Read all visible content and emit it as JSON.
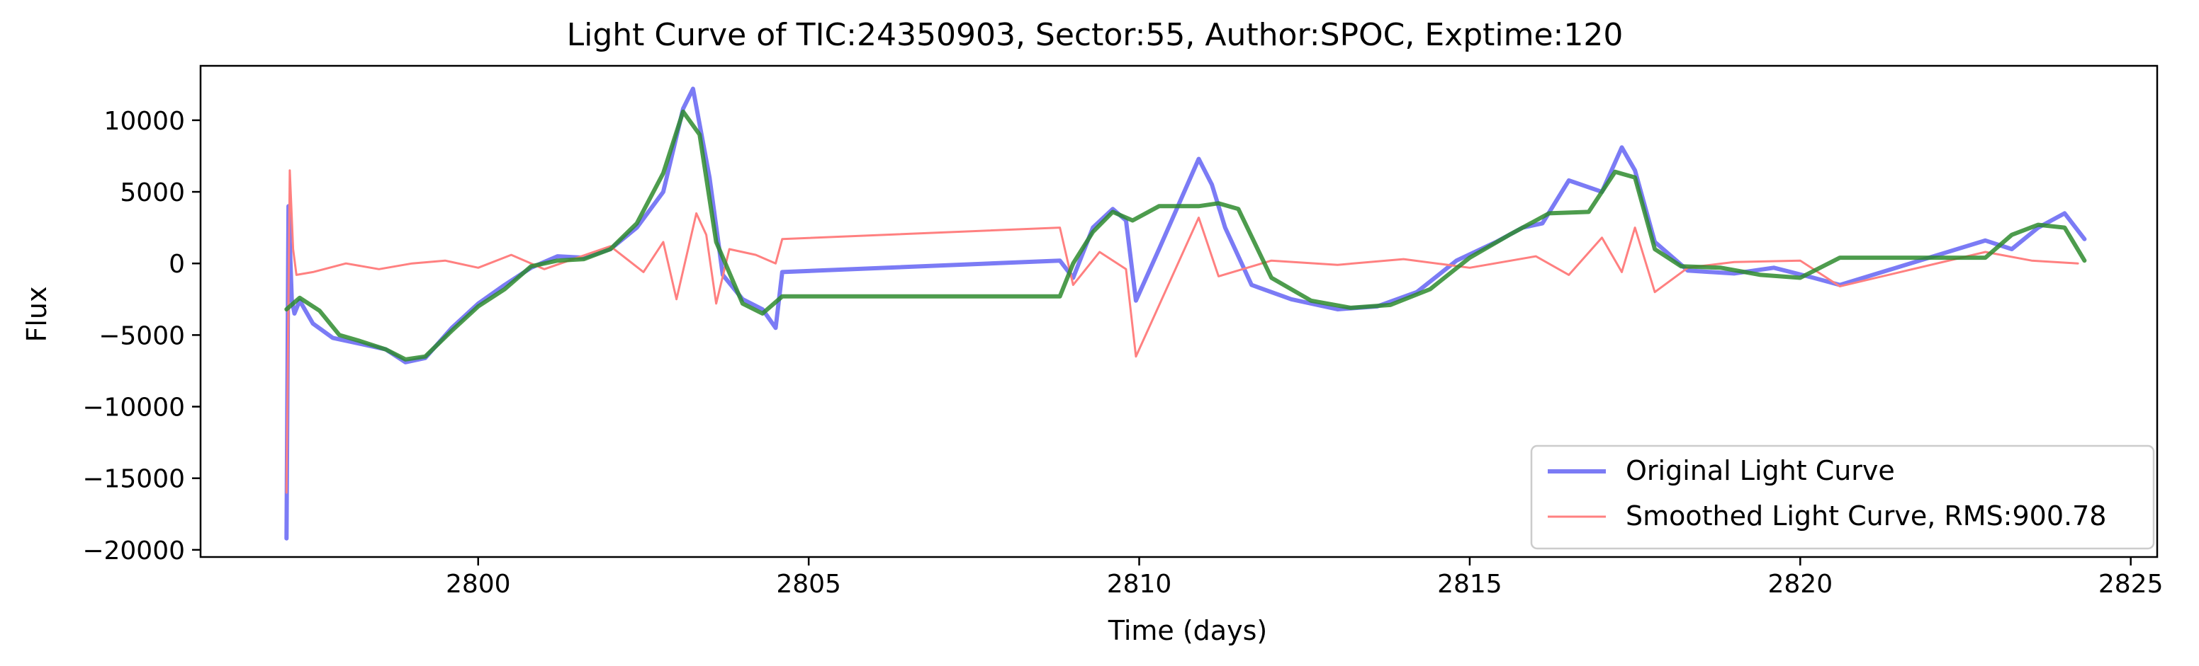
{
  "chart_data": {
    "type": "line",
    "title": "Light Curve of TIC:24350903, Sector:55, Author:SPOC, Exptime:120",
    "xlabel": "Time (days)",
    "ylabel": "Flux",
    "xlim": [
      2795.8,
      2825.4
    ],
    "ylim": [
      -20500,
      13800
    ],
    "xticks": [
      2800,
      2805,
      2810,
      2815,
      2820,
      2825
    ],
    "yticks": [
      10000,
      5000,
      0,
      -5000,
      -10000,
      -15000,
      -20000
    ],
    "ytick_labels": [
      "10000",
      "5000",
      "0",
      "−5000",
      "−10000",
      "−15000",
      "−20000"
    ],
    "grid": false,
    "legend_position": "lower right",
    "legend": [
      {
        "label": "Original Light Curve",
        "color": "#7b7bf5"
      },
      {
        "label": "Smoothed Light Curve, RMS:900.78",
        "color": "#ff8080"
      }
    ],
    "series": [
      {
        "name": "Original Light Curve",
        "color": "#7b7bf5",
        "x": [
          2797.1,
          2797.13,
          2797.18,
          2797.22,
          2797.3,
          2797.5,
          2797.8,
          2798.2,
          2798.6,
          2798.9,
          2799.2,
          2799.6,
          2800.0,
          2800.4,
          2800.8,
          2801.2,
          2801.6,
          2802.0,
          2802.4,
          2802.8,
          2803.1,
          2803.25,
          2803.5,
          2803.7,
          2804.0,
          2804.3,
          2804.5,
          2804.6,
          2808.8,
          2809.0,
          2809.3,
          2809.6,
          2809.8,
          2809.95,
          2810.3,
          2810.9,
          2811.1,
          2811.3,
          2811.7,
          2812.3,
          2813.0,
          2813.6,
          2814.2,
          2814.8,
          2815.4,
          2815.8,
          2816.1,
          2816.5,
          2817.0,
          2817.3,
          2817.5,
          2817.8,
          2818.3,
          2819.0,
          2819.6,
          2820.2,
          2820.6,
          2822.8,
          2823.2,
          2823.6,
          2824.0,
          2824.3
        ],
        "y": [
          -19200,
          4000,
          -2500,
          -3500,
          -2600,
          -4200,
          -5200,
          -5600,
          -6000,
          -6900,
          -6600,
          -4500,
          -2800,
          -1500,
          -300,
          500,
          400,
          1000,
          2500,
          5000,
          10800,
          12200,
          6000,
          -800,
          -2500,
          -3200,
          -4500,
          -600,
          200,
          -1000,
          2500,
          3800,
          3000,
          -2600,
          1000,
          7300,
          5500,
          2500,
          -1500,
          -2500,
          -3200,
          -3000,
          -2000,
          200,
          1500,
          2500,
          2800,
          5800,
          5000,
          8100,
          6500,
          1500,
          -500,
          -700,
          -300,
          -1000,
          -1500,
          1600,
          1000,
          2500,
          3500,
          1700
        ]
      },
      {
        "name": "Smoothed Light Curve, RMS:900.78",
        "color": "#ff8080",
        "x": [
          2797.1,
          2797.15,
          2797.2,
          2797.25,
          2797.5,
          2798.0,
          2798.5,
          2799.0,
          2799.5,
          2800.0,
          2800.5,
          2801.0,
          2801.5,
          2802.0,
          2802.5,
          2802.8,
          2803.0,
          2803.3,
          2803.45,
          2803.6,
          2803.8,
          2804.2,
          2804.5,
          2804.6,
          2808.8,
          2809.0,
          2809.4,
          2809.8,
          2809.95,
          2810.9,
          2811.2,
          2812.0,
          2813.0,
          2814.0,
          2815.0,
          2816.0,
          2816.5,
          2817.0,
          2817.3,
          2817.5,
          2817.8,
          2818.3,
          2819.0,
          2820.0,
          2820.6,
          2822.8,
          2823.5,
          2824.2
        ],
        "y": [
          -16000,
          6500,
          1000,
          -800,
          -600,
          0,
          -400,
          0,
          200,
          -300,
          600,
          -400,
          400,
          1200,
          -600,
          1500,
          -2500,
          3500,
          2000,
          -2800,
          1000,
          600,
          0,
          1700,
          2500,
          -1500,
          800,
          -400,
          -6500,
          3200,
          -900,
          200,
          -100,
          300,
          -300,
          500,
          -800,
          1800,
          -600,
          2500,
          -2000,
          -300,
          100,
          200,
          -1600,
          800,
          200,
          0
        ]
      },
      {
        "name": "",
        "color": "#2e8b2e",
        "x": [
          2797.1,
          2797.3,
          2797.6,
          2797.9,
          2798.2,
          2798.6,
          2798.9,
          2799.2,
          2799.6,
          2800.0,
          2800.4,
          2800.8,
          2801.2,
          2801.6,
          2802.0,
          2802.4,
          2802.8,
          2803.1,
          2803.35,
          2803.6,
          2804.0,
          2804.3,
          2804.6,
          2808.8,
          2809.0,
          2809.3,
          2809.6,
          2809.9,
          2810.3,
          2810.9,
          2811.2,
          2811.5,
          2812.0,
          2812.6,
          2813.2,
          2813.8,
          2814.4,
          2815.0,
          2815.6,
          2816.2,
          2816.8,
          2817.2,
          2817.5,
          2817.8,
          2818.2,
          2818.8,
          2819.4,
          2820.0,
          2820.6,
          2822.8,
          2823.2,
          2823.6,
          2824.0,
          2824.3
        ],
        "y": [
          -3200,
          -2400,
          -3300,
          -5000,
          -5400,
          -6000,
          -6700,
          -6500,
          -4700,
          -3000,
          -1800,
          -200,
          200,
          300,
          1000,
          2800,
          6300,
          10600,
          9000,
          1500,
          -2800,
          -3500,
          -2300,
          -2300,
          0,
          2200,
          3600,
          3000,
          4000,
          4000,
          4200,
          3800,
          -1000,
          -2600,
          -3100,
          -2900,
          -1800,
          400,
          2000,
          3500,
          3600,
          6400,
          6000,
          1000,
          -200,
          -300,
          -800,
          -1000,
          400,
          400,
          2000,
          2700,
          2500,
          200
        ]
      }
    ]
  }
}
